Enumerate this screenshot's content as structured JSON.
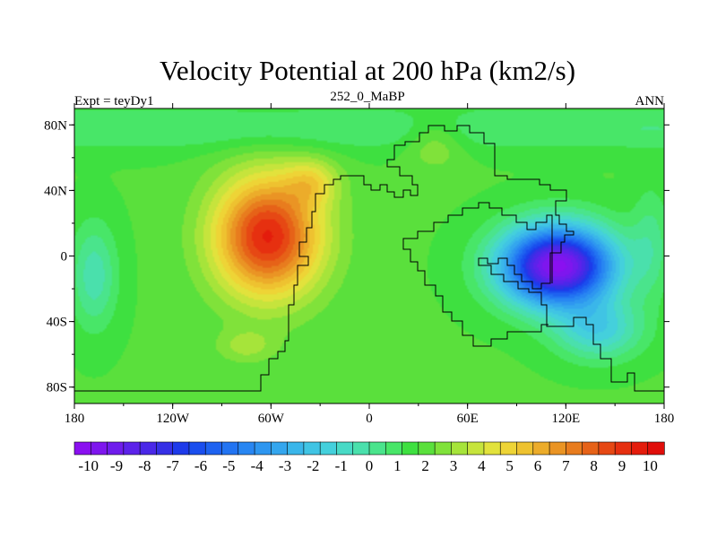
{
  "chart_data": {
    "type": "heatmap",
    "title": "Velocity Potential at 200 hPa (km2/s)",
    "subtitle_left": "Expt = teyDy1",
    "subtitle_center": "252_0_MaBP",
    "subtitle_right": "ANN",
    "x_axis": {
      "range": [
        -180,
        180
      ],
      "ticks": [
        {
          "value": -180,
          "label": "180"
        },
        {
          "value": -120,
          "label": "120W"
        },
        {
          "value": -60,
          "label": "60W"
        },
        {
          "value": 0,
          "label": "0"
        },
        {
          "value": 60,
          "label": "60E"
        },
        {
          "value": 120,
          "label": "120E"
        },
        {
          "value": 180,
          "label": "180"
        }
      ]
    },
    "y_axis": {
      "range": [
        -90,
        90
      ],
      "ticks": [
        {
          "value": 80,
          "label": "80N"
        },
        {
          "value": 40,
          "label": "40N"
        },
        {
          "value": 0,
          "label": "0"
        },
        {
          "value": -40,
          "label": "40S"
        },
        {
          "value": -80,
          "label": "80S"
        }
      ]
    },
    "colorbar": {
      "min": -10.5,
      "max": 10.5,
      "step": 0.5,
      "labels": [
        "-10",
        "-9",
        "-8",
        "-7",
        "-6",
        "-5",
        "-4",
        "-3",
        "-2",
        "-1",
        "0",
        "1",
        "2",
        "3",
        "4",
        "5",
        "6",
        "7",
        "8",
        "9",
        "10"
      ],
      "colors": [
        "#8a10f0",
        "#7e16ee",
        "#6f1cec",
        "#5c22ea",
        "#4a28e8",
        "#3630e6",
        "#1e3aea",
        "#1a4eee",
        "#1e62f0",
        "#2274f2",
        "#2886f2",
        "#2e96f0",
        "#34a6ee",
        "#3ab6ea",
        "#40c4e4",
        "#44d0dc",
        "#48dac6",
        "#4ae0ac",
        "#4ae48c",
        "#48e668",
        "#3ee040",
        "#5ae03c",
        "#80e23a",
        "#a6e43a",
        "#c6e43c",
        "#e2e23c",
        "#eed436",
        "#eec230",
        "#ecac2a",
        "#ea9424",
        "#e87c1e",
        "#e66218",
        "#e64814",
        "#e63010",
        "#e41c0c",
        "#e00e0a"
      ]
    },
    "fields": {
      "background": 1.8,
      "positive_center": {
        "lon": -62,
        "lat": 12,
        "max": 9.4
      },
      "negative_center": {
        "lon": 115,
        "lat": -6,
        "min": -10.2
      }
    }
  }
}
